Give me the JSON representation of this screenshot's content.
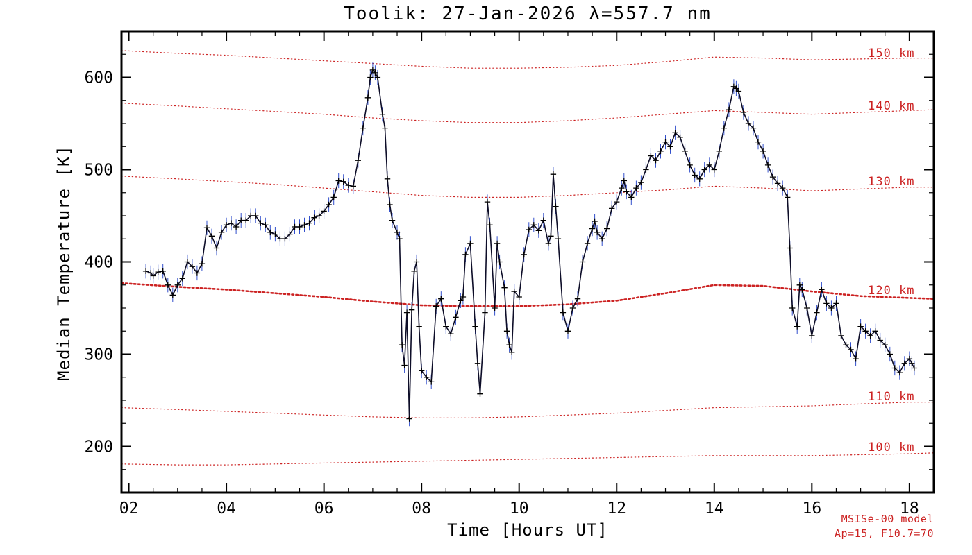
{
  "annotations": {
    "line1": "MSISe-00 model",
    "line2": "Ap=15, F10.7=70"
  },
  "chart_data": {
    "type": "line",
    "title": "Toolik: 27-Jan-2026 λ=557.7 nm",
    "xlabel": "Time [Hours UT]",
    "ylabel": "Median Temperature [K]",
    "xlim": [
      1.85,
      18.5
    ],
    "ylim": [
      150,
      650
    ],
    "x_ticks": [
      2,
      4,
      6,
      8,
      10,
      12,
      14,
      16,
      18
    ],
    "x_tick_labels": [
      "02",
      "04",
      "06",
      "08",
      "10",
      "12",
      "14",
      "16",
      "18"
    ],
    "y_ticks": [
      200,
      300,
      400,
      500,
      600
    ],
    "y_tick_labels": [
      "200",
      "300",
      "400",
      "500",
      "600"
    ],
    "x_minor_step": 0.5,
    "y_minor_step": 25,
    "grid": false,
    "legend": "none",
    "colors": {
      "axis": "#000000",
      "line": "#0d0d28",
      "marker": "#000000",
      "error": "#3350cc",
      "model": "#cc2222"
    },
    "series": {
      "name": "median temperature",
      "marker": "+",
      "error_bar_k": 8,
      "points": [
        [
          2.35,
          390
        ],
        [
          2.45,
          388
        ],
        [
          2.5,
          385
        ],
        [
          2.6,
          389
        ],
        [
          2.7,
          390
        ],
        [
          2.8,
          375
        ],
        [
          2.9,
          364
        ],
        [
          3.0,
          375
        ],
        [
          3.1,
          382
        ],
        [
          3.2,
          400
        ],
        [
          3.3,
          395
        ],
        [
          3.4,
          388
        ],
        [
          3.5,
          398
        ],
        [
          3.6,
          437
        ],
        [
          3.7,
          428
        ],
        [
          3.8,
          415
        ],
        [
          3.9,
          432
        ],
        [
          4.0,
          440
        ],
        [
          4.1,
          442
        ],
        [
          4.2,
          438
        ],
        [
          4.3,
          445
        ],
        [
          4.4,
          445
        ],
        [
          4.5,
          450
        ],
        [
          4.6,
          450
        ],
        [
          4.7,
          442
        ],
        [
          4.8,
          440
        ],
        [
          4.9,
          432
        ],
        [
          5.0,
          430
        ],
        [
          5.1,
          425
        ],
        [
          5.2,
          425
        ],
        [
          5.3,
          430
        ],
        [
          5.4,
          438
        ],
        [
          5.5,
          438
        ],
        [
          5.6,
          440
        ],
        [
          5.7,
          442
        ],
        [
          5.8,
          448
        ],
        [
          5.9,
          450
        ],
        [
          6.0,
          455
        ],
        [
          6.1,
          462
        ],
        [
          6.2,
          470
        ],
        [
          6.3,
          488
        ],
        [
          6.4,
          487
        ],
        [
          6.5,
          483
        ],
        [
          6.6,
          482
        ],
        [
          6.7,
          510
        ],
        [
          6.8,
          545
        ],
        [
          6.9,
          578
        ],
        [
          6.95,
          600
        ],
        [
          7.0,
          608
        ],
        [
          7.05,
          605
        ],
        [
          7.1,
          600
        ],
        [
          7.2,
          560
        ],
        [
          7.25,
          545
        ],
        [
          7.3,
          490
        ],
        [
          7.35,
          462
        ],
        [
          7.4,
          445
        ],
        [
          7.5,
          432
        ],
        [
          7.55,
          425
        ],
        [
          7.6,
          310
        ],
        [
          7.65,
          288
        ],
        [
          7.7,
          345
        ],
        [
          7.75,
          230
        ],
        [
          7.8,
          348
        ],
        [
          7.85,
          390
        ],
        [
          7.9,
          400
        ],
        [
          7.95,
          330
        ],
        [
          8.0,
          282
        ],
        [
          8.1,
          275
        ],
        [
          8.2,
          270
        ],
        [
          8.3,
          352
        ],
        [
          8.4,
          360
        ],
        [
          8.5,
          330
        ],
        [
          8.6,
          322
        ],
        [
          8.7,
          340
        ],
        [
          8.8,
          358
        ],
        [
          8.85,
          362
        ],
        [
          8.9,
          408
        ],
        [
          9.0,
          420
        ],
        [
          9.1,
          330
        ],
        [
          9.15,
          290
        ],
        [
          9.2,
          257
        ],
        [
          9.3,
          345
        ],
        [
          9.35,
          465
        ],
        [
          9.4,
          440
        ],
        [
          9.5,
          350
        ],
        [
          9.55,
          420
        ],
        [
          9.6,
          400
        ],
        [
          9.7,
          372
        ],
        [
          9.75,
          325
        ],
        [
          9.8,
          310
        ],
        [
          9.85,
          302
        ],
        [
          9.9,
          368
        ],
        [
          10.0,
          362
        ],
        [
          10.1,
          408
        ],
        [
          10.2,
          435
        ],
        [
          10.3,
          440
        ],
        [
          10.4,
          434
        ],
        [
          10.5,
          445
        ],
        [
          10.6,
          420
        ],
        [
          10.65,
          428
        ],
        [
          10.7,
          495
        ],
        [
          10.75,
          460
        ],
        [
          10.8,
          425
        ],
        [
          10.9,
          345
        ],
        [
          11.0,
          325
        ],
        [
          11.1,
          350
        ],
        [
          11.2,
          360
        ],
        [
          11.3,
          400
        ],
        [
          11.4,
          420
        ],
        [
          11.5,
          436
        ],
        [
          11.55,
          444
        ],
        [
          11.6,
          432
        ],
        [
          11.7,
          425
        ],
        [
          11.8,
          436
        ],
        [
          11.9,
          458
        ],
        [
          12.0,
          465
        ],
        [
          12.1,
          480
        ],
        [
          12.15,
          488
        ],
        [
          12.2,
          476
        ],
        [
          12.3,
          470
        ],
        [
          12.4,
          480
        ],
        [
          12.5,
          486
        ],
        [
          12.6,
          500
        ],
        [
          12.7,
          515
        ],
        [
          12.8,
          510
        ],
        [
          12.9,
          520
        ],
        [
          13.0,
          530
        ],
        [
          13.1,
          525
        ],
        [
          13.2,
          540
        ],
        [
          13.3,
          535
        ],
        [
          13.4,
          520
        ],
        [
          13.5,
          505
        ],
        [
          13.6,
          494
        ],
        [
          13.7,
          490
        ],
        [
          13.8,
          500
        ],
        [
          13.9,
          505
        ],
        [
          14.0,
          500
        ],
        [
          14.1,
          520
        ],
        [
          14.2,
          545
        ],
        [
          14.3,
          565
        ],
        [
          14.4,
          590
        ],
        [
          14.45,
          588
        ],
        [
          14.5,
          585
        ],
        [
          14.6,
          562
        ],
        [
          14.7,
          550
        ],
        [
          14.8,
          545
        ],
        [
          14.9,
          530
        ],
        [
          15.0,
          520
        ],
        [
          15.1,
          505
        ],
        [
          15.2,
          492
        ],
        [
          15.3,
          485
        ],
        [
          15.4,
          480
        ],
        [
          15.5,
          470
        ],
        [
          15.55,
          415
        ],
        [
          15.6,
          350
        ],
        [
          15.7,
          330
        ],
        [
          15.75,
          375
        ],
        [
          15.8,
          370
        ],
        [
          15.9,
          350
        ],
        [
          16.0,
          320
        ],
        [
          16.1,
          345
        ],
        [
          16.2,
          370
        ],
        [
          16.3,
          355
        ],
        [
          16.4,
          350
        ],
        [
          16.5,
          355
        ],
        [
          16.6,
          320
        ],
        [
          16.7,
          310
        ],
        [
          16.8,
          305
        ],
        [
          16.9,
          295
        ],
        [
          17.0,
          330
        ],
        [
          17.1,
          325
        ],
        [
          17.2,
          320
        ],
        [
          17.3,
          325
        ],
        [
          17.4,
          315
        ],
        [
          17.5,
          310
        ],
        [
          17.6,
          300
        ],
        [
          17.7,
          285
        ],
        [
          17.8,
          280
        ],
        [
          17.9,
          290
        ],
        [
          18.0,
          295
        ],
        [
          18.05,
          290
        ],
        [
          18.1,
          285
        ]
      ]
    },
    "model_curves": [
      {
        "label": "150 km",
        "bold": false,
        "label_x": 17.15,
        "label_y": 622,
        "x": [
          1.85,
          3,
          4,
          5,
          6,
          7,
          8,
          9,
          10,
          11,
          12,
          13,
          14,
          15,
          16,
          17,
          18,
          18.5
        ],
        "T": [
          629,
          626,
          624,
          621,
          618,
          615,
          612,
          610,
          610,
          611,
          613,
          617,
          622,
          621,
          619,
          620,
          621,
          621
        ]
      },
      {
        "label": "140 km",
        "bold": false,
        "label_x": 17.15,
        "label_y": 565,
        "x": [
          1.85,
          3,
          4,
          5,
          6,
          7,
          8,
          9,
          10,
          11,
          12,
          13,
          14,
          15,
          16,
          17,
          18,
          18.5
        ],
        "T": [
          572,
          569,
          566,
          563,
          560,
          556,
          553,
          551,
          551,
          553,
          556,
          560,
          564,
          562,
          560,
          562,
          564,
          565
        ]
      },
      {
        "label": "130 km",
        "bold": false,
        "label_x": 17.15,
        "label_y": 483,
        "x": [
          1.85,
          3,
          4,
          5,
          6,
          7,
          8,
          9,
          10,
          11,
          12,
          13,
          14,
          15,
          16,
          17,
          18,
          18.5
        ],
        "T": [
          493,
          490,
          487,
          484,
          480,
          476,
          472,
          470,
          470,
          472,
          475,
          478,
          482,
          480,
          477,
          479,
          481,
          481
        ]
      },
      {
        "label": "120 km",
        "bold": true,
        "label_x": 17.15,
        "label_y": 365,
        "x": [
          1.85,
          3,
          4,
          5,
          6,
          7,
          8,
          9,
          10,
          11,
          12,
          13,
          14,
          15,
          16,
          17,
          18,
          18.5
        ],
        "T": [
          377,
          373,
          370,
          366,
          362,
          357,
          353,
          352,
          352,
          354,
          358,
          366,
          375,
          374,
          368,
          363,
          361,
          360
        ]
      },
      {
        "label": "110 km",
        "bold": false,
        "label_x": 17.15,
        "label_y": 250,
        "x": [
          1.85,
          3,
          4,
          5,
          6,
          7,
          8,
          9,
          10,
          11,
          12,
          13,
          14,
          15,
          16,
          17,
          18,
          18.5
        ],
        "T": [
          242,
          240,
          238,
          236,
          234,
          232,
          231,
          231,
          232,
          234,
          236,
          239,
          242,
          243,
          244,
          246,
          248,
          248
        ]
      },
      {
        "label": "100 km",
        "bold": false,
        "label_x": 17.15,
        "label_y": 195,
        "x": [
          1.85,
          3,
          4,
          5,
          6,
          7,
          8,
          9,
          10,
          11,
          12,
          13,
          14,
          15,
          16,
          17,
          18,
          18.5
        ],
        "T": [
          181,
          180,
          180,
          181,
          182,
          183,
          184,
          185,
          186,
          187,
          188,
          189,
          190,
          190,
          190,
          191,
          192,
          193
        ]
      }
    ]
  }
}
